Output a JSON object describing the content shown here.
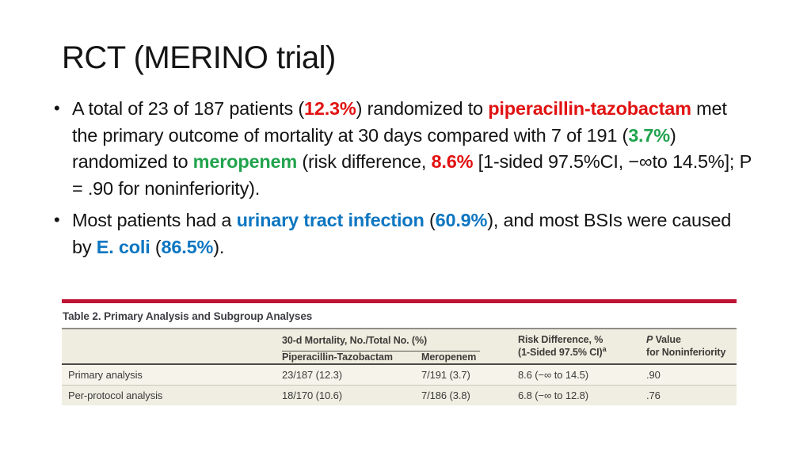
{
  "colors": {
    "red": "#e21212",
    "green": "#21a34d",
    "blue": "#0d76c1",
    "bar_red": "#c01334"
  },
  "slide": {
    "title": "RCT (MERINO trial)",
    "bullets": [
      {
        "segments": [
          {
            "text": "A total of 23 of 187 patients (",
            "style": "plain"
          },
          {
            "text": "12.3%",
            "style": "red"
          },
          {
            "text": ") randomized to ",
            "style": "plain"
          },
          {
            "text": "piperacillin-tazobactam",
            "style": "red"
          },
          {
            "text": " met the primary outcome of mortality at 30 days compared with 7 of 191 (",
            "style": "plain"
          },
          {
            "text": "3.7%",
            "style": "green"
          },
          {
            "text": ") randomized to ",
            "style": "plain"
          },
          {
            "text": "meropenem",
            "style": "green"
          },
          {
            "text": " (risk difference, ",
            "style": "plain"
          },
          {
            "text": "8.6%",
            "style": "red"
          },
          {
            "text": " [1-sided 97.5%CI, −∞to 14.5%]; P = .90 for noninferiority).",
            "style": "plain"
          }
        ]
      },
      {
        "segments": [
          {
            "text": "Most patients had a ",
            "style": "plain"
          },
          {
            "text": "urinary tract infection",
            "style": "blue"
          },
          {
            "text": " (",
            "style": "plain"
          },
          {
            "text": "60.9%",
            "style": "blue"
          },
          {
            "text": "), and most BSIs were caused by ",
            "style": "plain"
          },
          {
            "text": "E. coli",
            "style": "blue"
          },
          {
            "text": " (",
            "style": "plain"
          },
          {
            "text": "86.5%",
            "style": "blue"
          },
          {
            "text": ").",
            "style": "plain"
          }
        ]
      }
    ]
  },
  "table": {
    "caption": "Table 2. Primary Analysis and Subgroup Analyses",
    "header": {
      "group": "30-d Mortality, No./Total No. (%)",
      "col_drug1": "Piperacillin-Tazobactam",
      "col_drug2": "Meropenem",
      "risk_line1": "Risk Difference, %",
      "risk_line2": "(1-Sided 97.5% CI)",
      "risk_sup": "a",
      "p_italic": "P",
      "p_line1_rest": " Value",
      "p_line2": "for Noninferiority"
    },
    "rows": [
      {
        "label": "Primary analysis",
        "pip_taz": "23/187 (12.3)",
        "meropenem": "7/191 (3.7)",
        "risk_diff": "8.6 (−∞ to 14.5)",
        "p_value": ".90"
      },
      {
        "label": "Per-protocol analysis",
        "pip_taz": "18/170 (10.6)",
        "meropenem": "7/186 (3.8)",
        "risk_diff": "6.8 (−∞ to 12.8)",
        "p_value": ".76"
      }
    ]
  }
}
